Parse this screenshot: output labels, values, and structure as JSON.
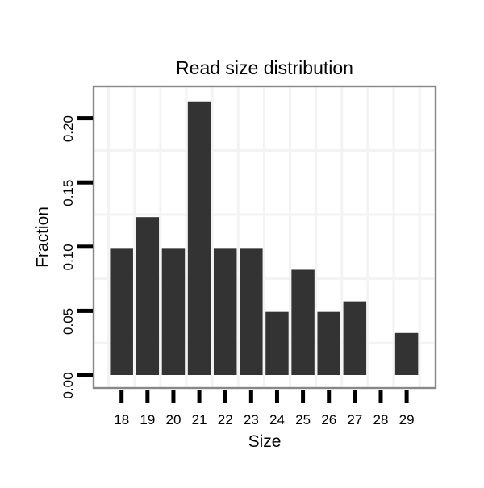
{
  "chart_data": {
    "type": "bar",
    "title": "Read size distribution",
    "xlabel": "Size",
    "ylabel": "Fraction",
    "categories": [
      "18",
      "19",
      "20",
      "21",
      "22",
      "23",
      "24",
      "25",
      "26",
      "27",
      "28",
      "29"
    ],
    "values": [
      0.0984,
      0.123,
      0.0984,
      0.2131,
      0.0984,
      0.0984,
      0.0492,
      0.082,
      0.0492,
      0.0574,
      0.0,
      0.0328
    ],
    "y_ticks": [
      {
        "value": 0.0,
        "label": "0.00"
      },
      {
        "value": 0.05,
        "label": "0.05"
      },
      {
        "value": 0.1,
        "label": "0.10"
      },
      {
        "value": 0.15,
        "label": "0.15"
      },
      {
        "value": 0.2,
        "label": "0.20"
      }
    ],
    "ylim": [
      -0.0105,
      0.225
    ],
    "grid": {
      "horizontal_minor": [
        0.025,
        0.075,
        0.125,
        0.175
      ],
      "vertical_at_category_boundaries": true,
      "visible": true
    },
    "legend": null,
    "colors": {
      "bar": "#333333",
      "panel_border": "#888888",
      "gridline": "#f3f3f3",
      "tick": "#000000",
      "text": "#000000",
      "background": "#ffffff"
    }
  }
}
